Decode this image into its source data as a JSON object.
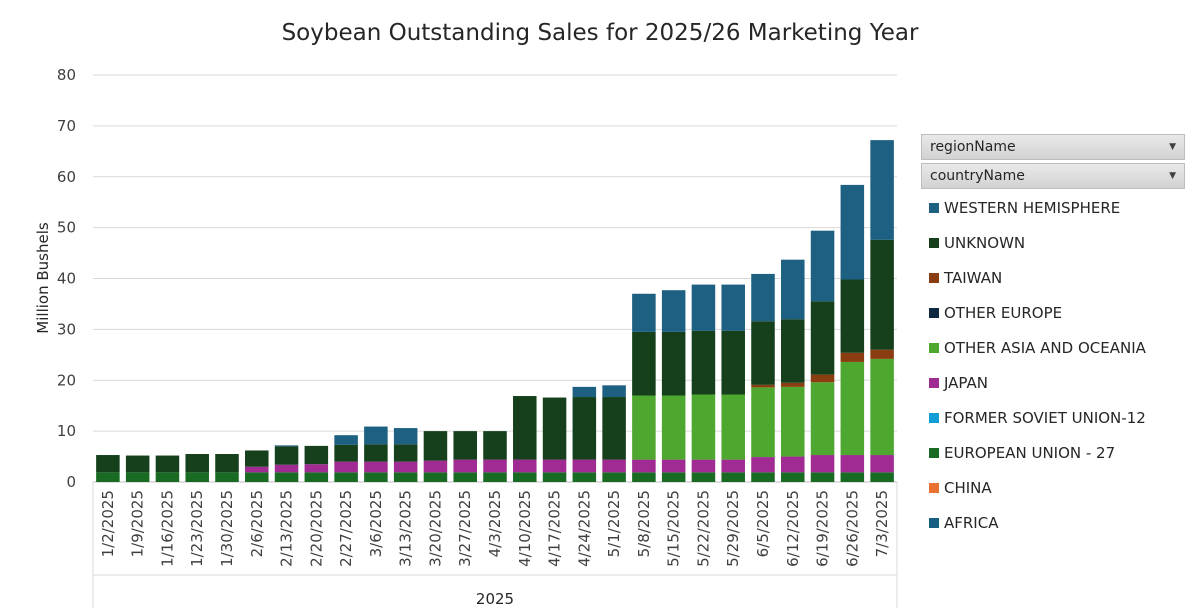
{
  "filters": [
    {
      "label": "regionName",
      "icon": "dropdown-arrow-icon"
    },
    {
      "label": "countryName",
      "icon": "dropdown-arrow-icon"
    }
  ],
  "chart_data": {
    "type": "bar",
    "stacked": true,
    "title": "Soybean Outstanding Sales for 2025/26 Marketing Year",
    "xlabel": "2025",
    "ylabel": "Million Bushels",
    "ylim": [
      0,
      80
    ],
    "yticks": [
      0,
      10,
      20,
      30,
      40,
      50,
      60,
      70,
      80
    ],
    "grid": true,
    "legend_position": "right",
    "categories": [
      "1/2/2025",
      "1/9/2025",
      "1/16/2025",
      "1/23/2025",
      "1/30/2025",
      "2/6/2025",
      "2/13/2025",
      "2/20/2025",
      "2/27/2025",
      "3/6/2025",
      "3/13/2025",
      "3/20/2025",
      "3/27/2025",
      "4/3/2025",
      "4/10/2025",
      "4/17/2025",
      "4/24/2025",
      "5/1/2025",
      "5/8/2025",
      "5/15/2025",
      "5/22/2025",
      "5/29/2025",
      "6/5/2025",
      "6/12/2025",
      "6/19/2025",
      "6/26/2025",
      "7/3/2025"
    ],
    "series": [
      {
        "name": "AFRICA",
        "color": "#156082",
        "values": [
          0,
          0,
          0,
          0,
          0,
          0,
          0,
          0,
          0,
          0,
          0,
          0,
          0,
          0,
          0,
          0,
          0,
          0,
          0,
          0,
          0,
          0,
          0,
          0,
          0,
          0,
          0
        ]
      },
      {
        "name": "CHINA",
        "color": "#e97132",
        "values": [
          0,
          0,
          0,
          0,
          0,
          0,
          0,
          0,
          0,
          0,
          0,
          0,
          0,
          0,
          0,
          0,
          0,
          0,
          0,
          0,
          0,
          0,
          0,
          0,
          0,
          0,
          0
        ]
      },
      {
        "name": "EUROPEAN UNION - 27",
        "color": "#196b24",
        "values": [
          1.9,
          1.9,
          1.9,
          1.9,
          1.9,
          1.9,
          1.9,
          1.9,
          1.9,
          1.9,
          1.9,
          1.9,
          1.9,
          1.9,
          1.9,
          1.9,
          1.9,
          1.9,
          1.9,
          1.9,
          1.9,
          1.9,
          1.9,
          1.9,
          1.9,
          1.9,
          1.9
        ]
      },
      {
        "name": "FORMER SOVIET UNION-12",
        "color": "#0f9ed5",
        "values": [
          0,
          0,
          0,
          0,
          0,
          0,
          0,
          0,
          0,
          0,
          0,
          0,
          0,
          0,
          0,
          0,
          0,
          0,
          0,
          0,
          0,
          0,
          0,
          0,
          0,
          0,
          0
        ]
      },
      {
        "name": "JAPAN",
        "color": "#a02b93",
        "values": [
          0,
          0,
          0,
          0,
          0,
          1.1,
          1.5,
          1.6,
          2.1,
          2.1,
          2.1,
          2.3,
          2.5,
          2.5,
          2.5,
          2.5,
          2.5,
          2.5,
          2.5,
          2.5,
          2.5,
          2.5,
          3.0,
          3.1,
          3.4,
          3.4,
          3.4
        ]
      },
      {
        "name": "OTHER ASIA AND OCEANIA",
        "color": "#4ea72e",
        "values": [
          0,
          0,
          0,
          0,
          0,
          0,
          0,
          0,
          0,
          0,
          0,
          0,
          0,
          0,
          0,
          0,
          0,
          0,
          12.6,
          12.6,
          12.8,
          12.8,
          13.7,
          13.7,
          14.3,
          18.3,
          18.9
        ]
      },
      {
        "name": "OTHER EUROPE",
        "color": "#0e2841",
        "values": [
          0,
          0,
          0,
          0,
          0,
          0,
          0,
          0,
          0,
          0,
          0,
          0,
          0,
          0,
          0,
          0,
          0,
          0,
          0,
          0,
          0,
          0,
          0,
          0,
          0,
          0,
          0
        ]
      },
      {
        "name": "TAIWAN",
        "color": "#8b3d12",
        "values": [
          0,
          0,
          0,
          0,
          0,
          0,
          0,
          0,
          0,
          0,
          0,
          0,
          0,
          0,
          0,
          0,
          0,
          0,
          0,
          0,
          0,
          0,
          0.5,
          0.8,
          1.5,
          1.8,
          1.8
        ]
      },
      {
        "name": "UNKNOWN",
        "color": "#15401b",
        "values": [
          3.4,
          3.3,
          3.3,
          3.6,
          3.6,
          3.2,
          3.6,
          3.6,
          3.3,
          3.4,
          3.4,
          5.8,
          5.6,
          5.6,
          12.5,
          12.2,
          12.3,
          12.3,
          12.5,
          12.5,
          12.5,
          12.5,
          12.5,
          12.5,
          14.4,
          14.4,
          21.6
        ]
      },
      {
        "name": "WESTERN HEMISPHERE",
        "color": "#1d6081",
        "values": [
          0,
          0,
          0,
          0,
          0,
          0,
          0.2,
          0,
          1.9,
          3.5,
          3.2,
          0,
          0,
          0,
          0,
          0,
          2.0,
          2.3,
          7.5,
          8.2,
          9.1,
          9.1,
          9.3,
          11.7,
          13.9,
          18.6,
          19.6
        ]
      }
    ],
    "legend_order": [
      "WESTERN HEMISPHERE",
      "UNKNOWN",
      "TAIWAN",
      "OTHER EUROPE",
      "OTHER ASIA AND OCEANIA",
      "JAPAN",
      "FORMER SOVIET UNION-12",
      "EUROPEAN UNION - 27",
      "CHINA",
      "AFRICA"
    ]
  }
}
